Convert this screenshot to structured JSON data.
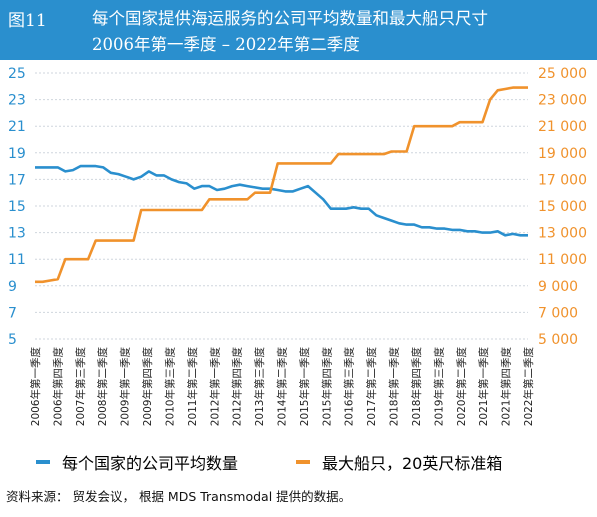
{
  "header": {
    "fig_label": "图11",
    "title": "每个国家提供海运服务的公司平均数量和最大船只尺寸",
    "subtitle": "2006年第一季度 – 2022年第二季度"
  },
  "source": "资料来源： 贸发会议， 根据 MDS Transmodal 提供的数据。",
  "colors": {
    "header_bg": "#2a8fce",
    "left_series": "#2a8fce",
    "right_series": "#f0922c",
    "grid": "#cfd6dd"
  },
  "chart_data": {
    "type": "line",
    "x_labels": [
      "2006年第一季度",
      "2006年第四季度",
      "2007年第三季度",
      "2008年第二季度",
      "2009年第一季度",
      "2009年第四季度",
      "2010年第三季度",
      "2011年第二季度",
      "2012年第一季度",
      "2012年第四季度",
      "2013年第三季度",
      "2014年第二季度",
      "2015年第一季度",
      "2015年第四季度",
      "2016年第三季度",
      "2017年第二季度",
      "2018年第一季度",
      "2018年第四季度",
      "2019年第三季度",
      "2020年第二季度",
      "2021年第一季度",
      "2021年第四季度",
      "2022年第二季度"
    ],
    "left_axis": {
      "min": 5,
      "max": 25,
      "ticks": [
        "5",
        "7",
        "9",
        "11",
        "13",
        "15",
        "17",
        "19",
        "21",
        "23",
        "25"
      ],
      "tick_values": [
        5,
        7,
        9,
        11,
        13,
        15,
        17,
        19,
        21,
        23,
        25
      ]
    },
    "right_axis": {
      "min": 5000,
      "max": 25000,
      "ticks": [
        "5 000",
        "7 000",
        "9 000",
        "11 000",
        "13 000",
        "15 000",
        "17 000",
        "19 000",
        "21 000",
        "23 000",
        "25 000"
      ],
      "tick_values": [
        5000,
        7000,
        9000,
        11000,
        13000,
        15000,
        17000,
        19000,
        21000,
        23000,
        25000
      ]
    },
    "series": [
      {
        "name": "每个国家的公司平均数量",
        "axis": "left",
        "values": [
          17.9,
          17.9,
          17.9,
          17.9,
          17.6,
          17.7,
          18.0,
          18.0,
          18.0,
          17.9,
          17.5,
          17.4,
          17.2,
          17.0,
          17.2,
          17.6,
          17.3,
          17.3,
          17.0,
          16.8,
          16.7,
          16.3,
          16.5,
          16.5,
          16.2,
          16.3,
          16.5,
          16.6,
          16.5,
          16.4,
          16.3,
          16.3,
          16.2,
          16.1,
          16.1,
          16.3,
          16.5,
          16.0,
          15.5,
          14.8,
          14.8,
          14.8,
          14.9,
          14.8,
          14.8,
          14.3,
          14.1,
          13.9,
          13.7,
          13.6,
          13.6,
          13.4,
          13.4,
          13.3,
          13.3,
          13.2,
          13.2,
          13.1,
          13.1,
          13.0,
          13.0,
          13.1,
          12.8,
          12.9,
          12.8,
          12.8
        ]
      },
      {
        "name": "最大船只，20英尺标准箱",
        "axis": "right",
        "values": [
          9300,
          9300,
          9400,
          9500,
          11000,
          11000,
          11000,
          11000,
          12400,
          12400,
          12400,
          12400,
          12400,
          12400,
          14700,
          14700,
          14700,
          14700,
          14700,
          14700,
          14700,
          14700,
          14700,
          15500,
          15500,
          15500,
          15500,
          15500,
          15500,
          16000,
          16000,
          16000,
          18200,
          18200,
          18200,
          18200,
          18200,
          18200,
          18200,
          18200,
          18900,
          18900,
          18900,
          18900,
          18900,
          18900,
          18900,
          19100,
          19100,
          19100,
          21000,
          21000,
          21000,
          21000,
          21000,
          21000,
          21300,
          21300,
          21300,
          21300,
          23000,
          23700,
          23800,
          23900,
          23900,
          23900
        ]
      }
    ]
  }
}
